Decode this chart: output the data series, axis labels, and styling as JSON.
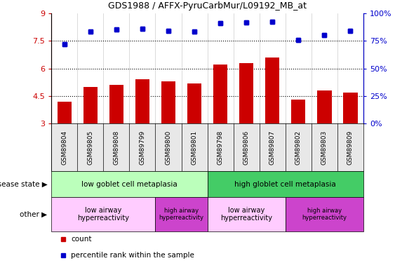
{
  "title": "GDS1988 / AFFX-PyruCarbMur/L09192_MB_at",
  "samples": [
    "GSM89804",
    "GSM89805",
    "GSM89808",
    "GSM89799",
    "GSM89800",
    "GSM89801",
    "GSM89798",
    "GSM89806",
    "GSM89807",
    "GSM89802",
    "GSM89803",
    "GSM89809"
  ],
  "bar_values": [
    4.2,
    5.0,
    5.1,
    5.4,
    5.3,
    5.2,
    6.2,
    6.3,
    6.6,
    4.3,
    4.8,
    4.7
  ],
  "dot_values": [
    7.3,
    8.0,
    8.1,
    8.15,
    8.05,
    8.0,
    8.45,
    8.5,
    8.55,
    7.55,
    7.8,
    8.05
  ],
  "bar_color": "#cc0000",
  "dot_color": "#0000cc",
  "ylim_left": [
    3,
    9
  ],
  "yticks_left": [
    3,
    4.5,
    6,
    7.5,
    9
  ],
  "ytick_labels_left": [
    "3",
    "4.5",
    "6",
    "7.5",
    "9"
  ],
  "ylim_right": [
    0,
    100
  ],
  "yticks_right": [
    0,
    25,
    50,
    75,
    100
  ],
  "ytick_labels_right": [
    "0%",
    "25%",
    "50%",
    "75%",
    "100%"
  ],
  "dotted_lines": [
    4.5,
    6.0,
    7.5
  ],
  "disease_state_groups": [
    {
      "label": "low goblet cell metaplasia",
      "start": 0,
      "end": 6,
      "color": "#bbffbb"
    },
    {
      "label": "high globlet cell metaplasia",
      "start": 6,
      "end": 12,
      "color": "#44cc66"
    }
  ],
  "other_groups": [
    {
      "label": "low airway\nhyperreactivity",
      "start": 0,
      "end": 4,
      "color": "#ffccff",
      "fontsize": 7
    },
    {
      "label": "high airway\nhyperreactivity",
      "start": 4,
      "end": 6,
      "color": "#cc44cc",
      "fontsize": 6
    },
    {
      "label": "low airway\nhyperreactivity",
      "start": 6,
      "end": 9,
      "color": "#ffccff",
      "fontsize": 7
    },
    {
      "label": "high airway\nhyperreactivity",
      "start": 9,
      "end": 12,
      "color": "#cc44cc",
      "fontsize": 6
    }
  ],
  "legend_items": [
    {
      "label": "count",
      "color": "#cc0000"
    },
    {
      "label": "percentile rank within the sample",
      "color": "#0000cc"
    }
  ],
  "disease_state_label": "disease state",
  "other_label": "other",
  "bg_color": "#e8e8e8"
}
